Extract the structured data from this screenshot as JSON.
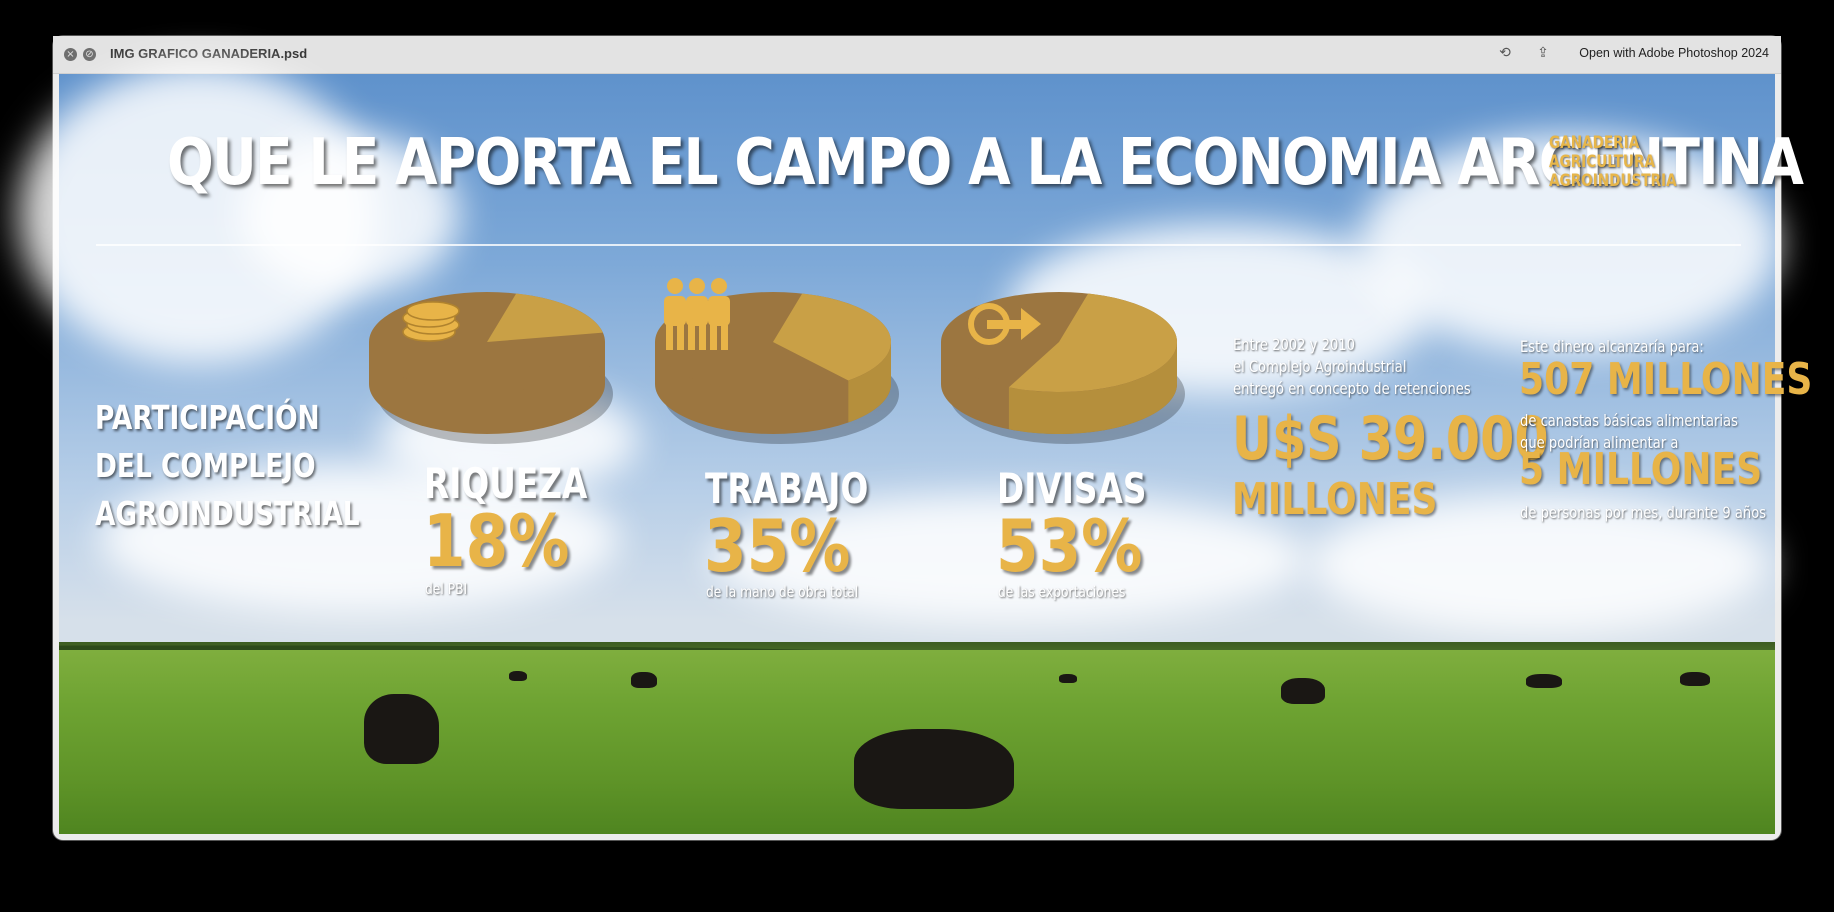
{
  "window": {
    "title": "IMG GRAFICO GANADERIA.psd",
    "open_with_label": "Open with Adobe Photoshop 2024",
    "close_glyph": "×",
    "minimize_glyph": "⊘",
    "rotate_glyph": "⟲",
    "share_glyph": "⇪"
  },
  "infographic": {
    "headline": "QUE LE APORTA EL  CAMPO A LA ECONOMIA  ARGENTINA",
    "tags": [
      "GANADERIA",
      "AGRICULTURA",
      "AGROINDUSTRIA"
    ],
    "participacion": [
      "PARTICIPACIÓN",
      "DEL COMPLEJO",
      "AGROINDUSTRIAL"
    ],
    "stats": [
      {
        "label": "RIQUEZA",
        "value": "18%",
        "sub": "del PBI",
        "share": 0.18,
        "icon": "coins-icon"
      },
      {
        "label": "TRABAJO",
        "value": "35%",
        "sub": "de la mano de obra total",
        "share": 0.35,
        "icon": "people-icon"
      },
      {
        "label": "DIVISAS",
        "value": "53%",
        "sub": "de las exportaciones",
        "share": 0.53,
        "icon": "export-arrow-icon"
      }
    ],
    "retenciones": {
      "line1": "Entre 2002 y 2010",
      "line2": "el Complejo Agroindustrial",
      "line3": "entregó en concepto de retenciones",
      "amount": "U$S 39.000",
      "unit": "MILLONES"
    },
    "canastas": {
      "intro": "Este dinero alcanzaría para:",
      "big1": "507 MILLONES",
      "mid1": "de canastas básicas alimentarias",
      "mid2": "que podrían alimentar a",
      "big2": "5 MILLONES",
      "end": "de personas por mes, durante 9 años"
    },
    "colors": {
      "gold": "#e8b448",
      "pie_dark": "#9c7640",
      "pie_light": "#c9a046"
    }
  }
}
